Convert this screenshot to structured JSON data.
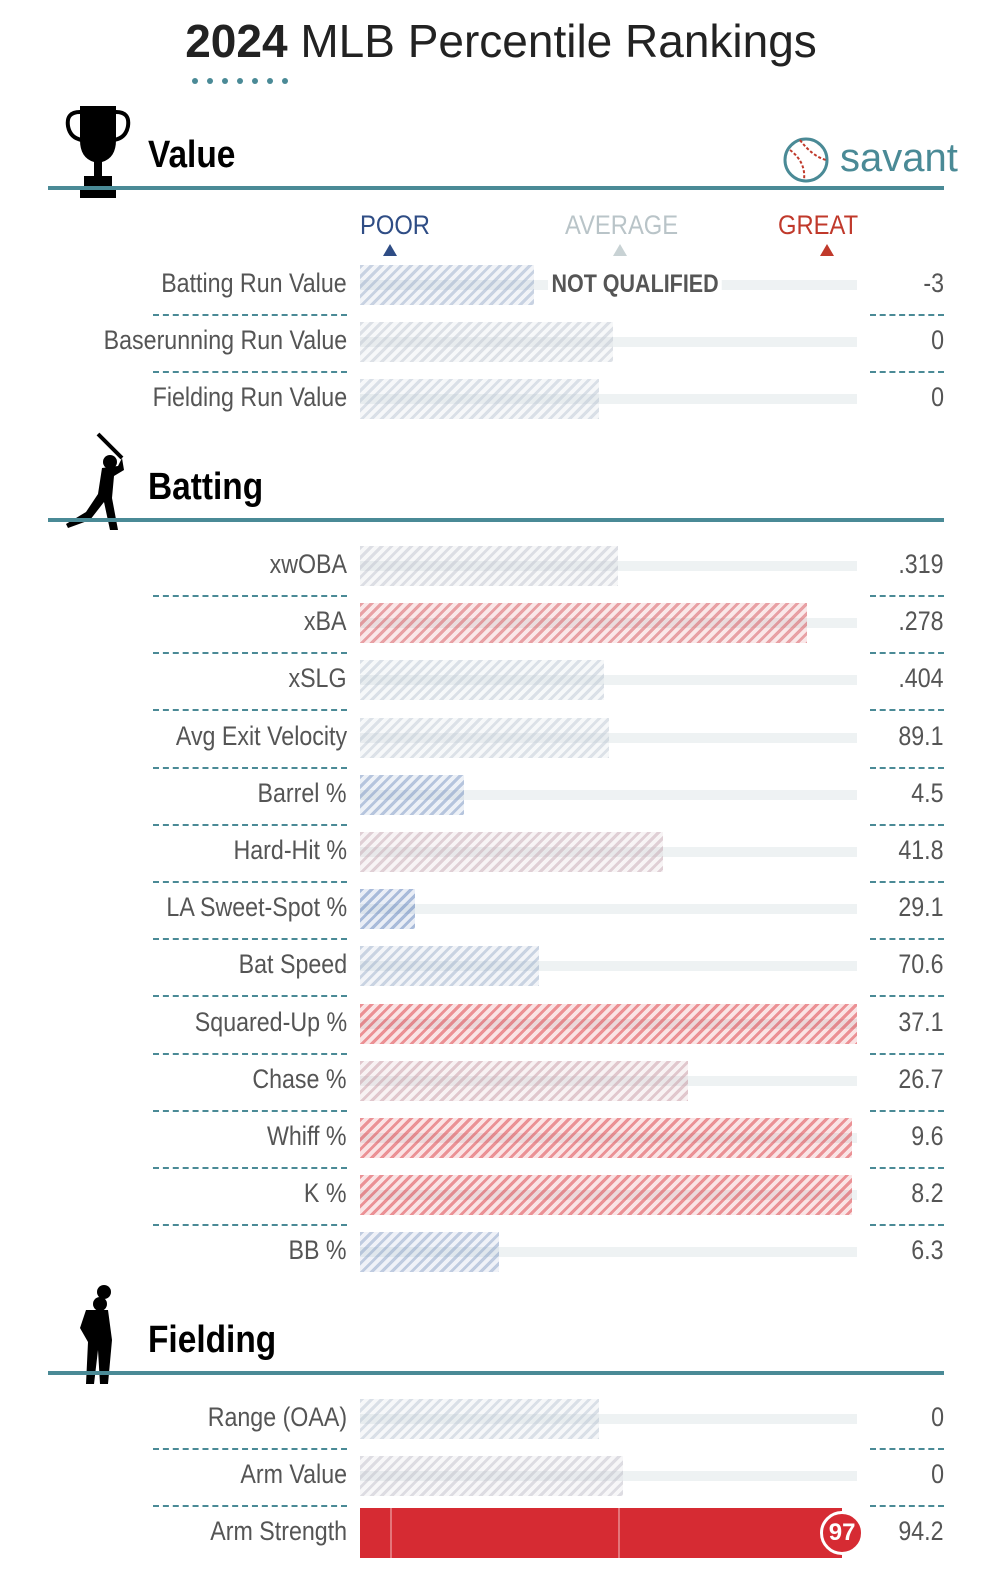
{
  "header": {
    "year": "2024",
    "title": "MLB Percentile Rankings"
  },
  "brand": "savant",
  "scale": {
    "poor": "POOR",
    "average": "AVERAGE",
    "great": "GREAT"
  },
  "sections": [
    {
      "title": "Value",
      "rows": [
        {
          "label": "Batting Run Value",
          "stat": "-3",
          "percentile": 35,
          "note": "NOT QUALIFIED"
        },
        {
          "label": "Baserunning Run Value",
          "stat": "0",
          "percentile": 51
        },
        {
          "label": "Fielding Run Value",
          "stat": "0",
          "percentile": 48
        }
      ]
    },
    {
      "title": "Batting",
      "rows": [
        {
          "label": "xwOBA",
          "stat": ".319",
          "percentile": 52
        },
        {
          "label": "xBA",
          "stat": ".278",
          "percentile": 90
        },
        {
          "label": "xSLG",
          "stat": ".404",
          "percentile": 49
        },
        {
          "label": "Avg Exit Velocity",
          "stat": "89.1",
          "percentile": 50
        },
        {
          "label": "Barrel %",
          "stat": "4.5",
          "percentile": 21
        },
        {
          "label": "Hard-Hit %",
          "stat": "41.8",
          "percentile": 61
        },
        {
          "label": "LA Sweet-Spot %",
          "stat": "29.1",
          "percentile": 11
        },
        {
          "label": "Bat Speed",
          "stat": "70.6",
          "percentile": 36
        },
        {
          "label": "Squared-Up %",
          "stat": "37.1",
          "percentile": 100
        },
        {
          "label": "Chase %",
          "stat": "26.7",
          "percentile": 66
        },
        {
          "label": "Whiff %",
          "stat": "9.6",
          "percentile": 99
        },
        {
          "label": "K %",
          "stat": "8.2",
          "percentile": 99
        },
        {
          "label": "BB %",
          "stat": "6.3",
          "percentile": 28
        }
      ]
    },
    {
      "title": "Fielding",
      "rows": [
        {
          "label": "Range (OAA)",
          "stat": "0",
          "percentile": 48
        },
        {
          "label": "Arm Value",
          "stat": "0",
          "percentile": 53
        },
        {
          "label": "Arm Strength",
          "stat": "94.2",
          "percentile": 97,
          "highlight": true
        }
      ]
    }
  ]
}
